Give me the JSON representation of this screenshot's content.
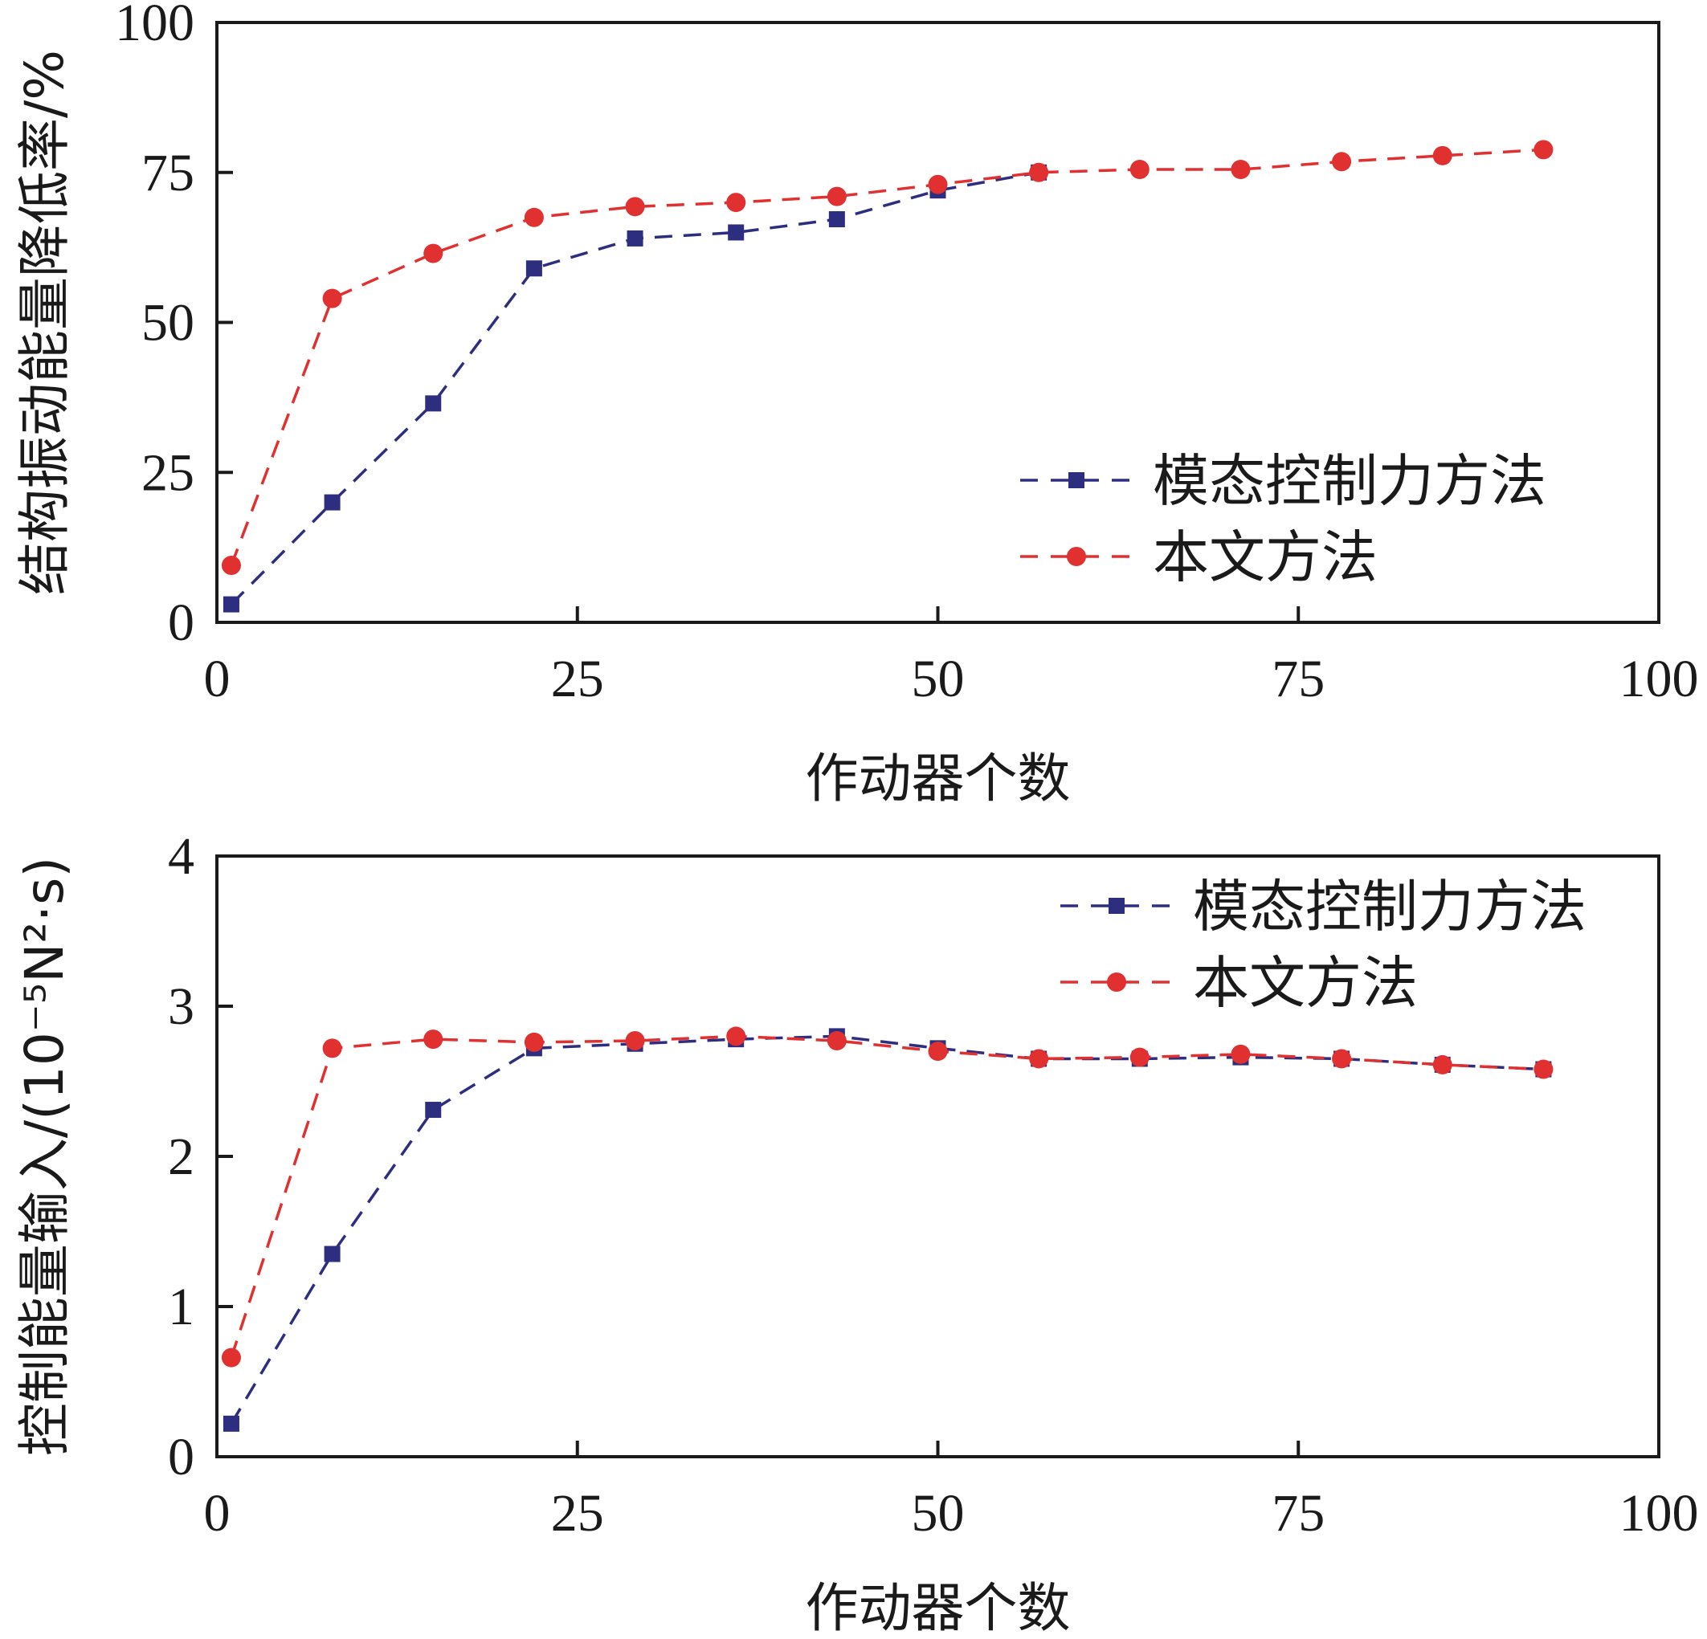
{
  "chart_data": [
    {
      "type": "line",
      "xlabel": "作动器个数",
      "ylabel": "结构振动能量降低率/%",
      "xlim": [
        0,
        100
      ],
      "ylim": [
        0,
        100
      ],
      "xticks": [
        0,
        25,
        50,
        75,
        100
      ],
      "yticks": [
        0,
        25,
        50,
        75,
        100
      ],
      "legend_position": "lower-right",
      "series": [
        {
          "name": "模态控制力方法",
          "color": "#2e2e80",
          "marker": "square",
          "x": [
            1,
            8,
            15,
            22,
            29,
            36,
            43,
            50,
            57
          ],
          "y": [
            3,
            20,
            36.5,
            59,
            64,
            65,
            67.2,
            72,
            75
          ]
        },
        {
          "name": "本文方法",
          "color": "#e03030",
          "marker": "circle",
          "x": [
            1,
            8,
            15,
            22,
            29,
            36,
            43,
            50,
            57,
            64,
            71,
            78,
            85,
            92
          ],
          "y": [
            9.5,
            54,
            61.5,
            67.5,
            69.3,
            70,
            71,
            73,
            75,
            75.5,
            75.5,
            76.8,
            77.8,
            78.8
          ]
        }
      ]
    },
    {
      "type": "line",
      "xlabel": "作动器个数",
      "ylabel": "控制能量输入/(10⁻⁵N²·s)",
      "xlim": [
        0,
        100
      ],
      "ylim": [
        0,
        4
      ],
      "xticks": [
        0,
        25,
        50,
        75,
        100
      ],
      "yticks": [
        0,
        1,
        2,
        3,
        4
      ],
      "legend_position": "top-right",
      "series": [
        {
          "name": "模态控制力方法",
          "color": "#2e2e80",
          "marker": "square",
          "x": [
            1,
            8,
            15,
            22,
            29,
            36,
            43,
            50,
            57,
            64,
            71,
            78,
            85,
            92
          ],
          "y": [
            0.22,
            1.35,
            2.31,
            2.72,
            2.75,
            2.78,
            2.8,
            2.72,
            2.65,
            2.65,
            2.66,
            2.65,
            2.61,
            2.58
          ]
        },
        {
          "name": "本文方法",
          "color": "#e03030",
          "marker": "circle",
          "x": [
            1,
            8,
            15,
            22,
            29,
            36,
            43,
            50,
            57,
            64,
            71,
            78,
            85,
            92
          ],
          "y": [
            0.66,
            2.72,
            2.78,
            2.76,
            2.77,
            2.8,
            2.77,
            2.7,
            2.65,
            2.66,
            2.68,
            2.65,
            2.61,
            2.58
          ]
        }
      ]
    }
  ]
}
